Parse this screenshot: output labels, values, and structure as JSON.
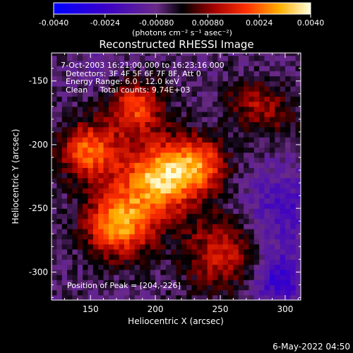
{
  "chart_data": {
    "type": "heatmap",
    "title": "Reconstructed RHESSI Image",
    "xlabel": "Heliocentric X (arcsec)",
    "ylabel": "Heliocentric Y (arcsec)",
    "xlim": [
      120,
      312
    ],
    "ylim": [
      -322,
      -128
    ],
    "x_ticks": [
      150,
      200,
      250,
      300
    ],
    "y_ticks": [
      -150,
      -200,
      -250,
      -300
    ],
    "colorbar": {
      "range": [
        -0.004,
        0.004
      ],
      "ticks": [
        "-0.0040",
        "-0.0024",
        "-0.00080",
        "0.00080",
        "0.0024",
        "0.0040"
      ],
      "unit_label": "(photons cm⁻² s⁻¹ asec⁻²)"
    },
    "info_lines": [
      "7-Oct-2003 16:21:00.000 to 16:23:16.000",
      "Detectors: 3F 4F 5F 6F 7F 8F, Att 0",
      "Energy Range: 6.0 - 12.0 keV",
      "Clean     Total counts: 9.74E+03"
    ],
    "peak_label": "Position of Peak = [204,-226]",
    "peak": [
      204,
      -226
    ],
    "sources": [
      {
        "x": 204,
        "y": -226,
        "amp": 0.004,
        "sigma": 20
      },
      {
        "x": 172,
        "y": -262,
        "amp": 0.0036,
        "sigma": 18
      },
      {
        "x": 150,
        "y": -205,
        "amp": 0.003,
        "sigma": 16
      },
      {
        "x": 185,
        "y": -170,
        "amp": 0.0026,
        "sigma": 15
      },
      {
        "x": 235,
        "y": -215,
        "amp": 0.0024,
        "sigma": 15
      },
      {
        "x": 250,
        "y": -285,
        "amp": 0.002,
        "sigma": 20
      },
      {
        "x": 290,
        "y": -175,
        "amp": 0.0012,
        "sigma": 14
      },
      {
        "x": 270,
        "y": -165,
        "amp": 0.0011,
        "sigma": 12
      },
      {
        "x": 300,
        "y": -250,
        "amp": -0.0014,
        "sigma": 22
      },
      {
        "x": 295,
        "y": -305,
        "amp": -0.002,
        "sigma": 14
      },
      {
        "x": 160,
        "y": -140,
        "amp": -0.0006,
        "sigma": 14
      }
    ]
  },
  "footer": {
    "date": "6-May-2022 04:50"
  }
}
